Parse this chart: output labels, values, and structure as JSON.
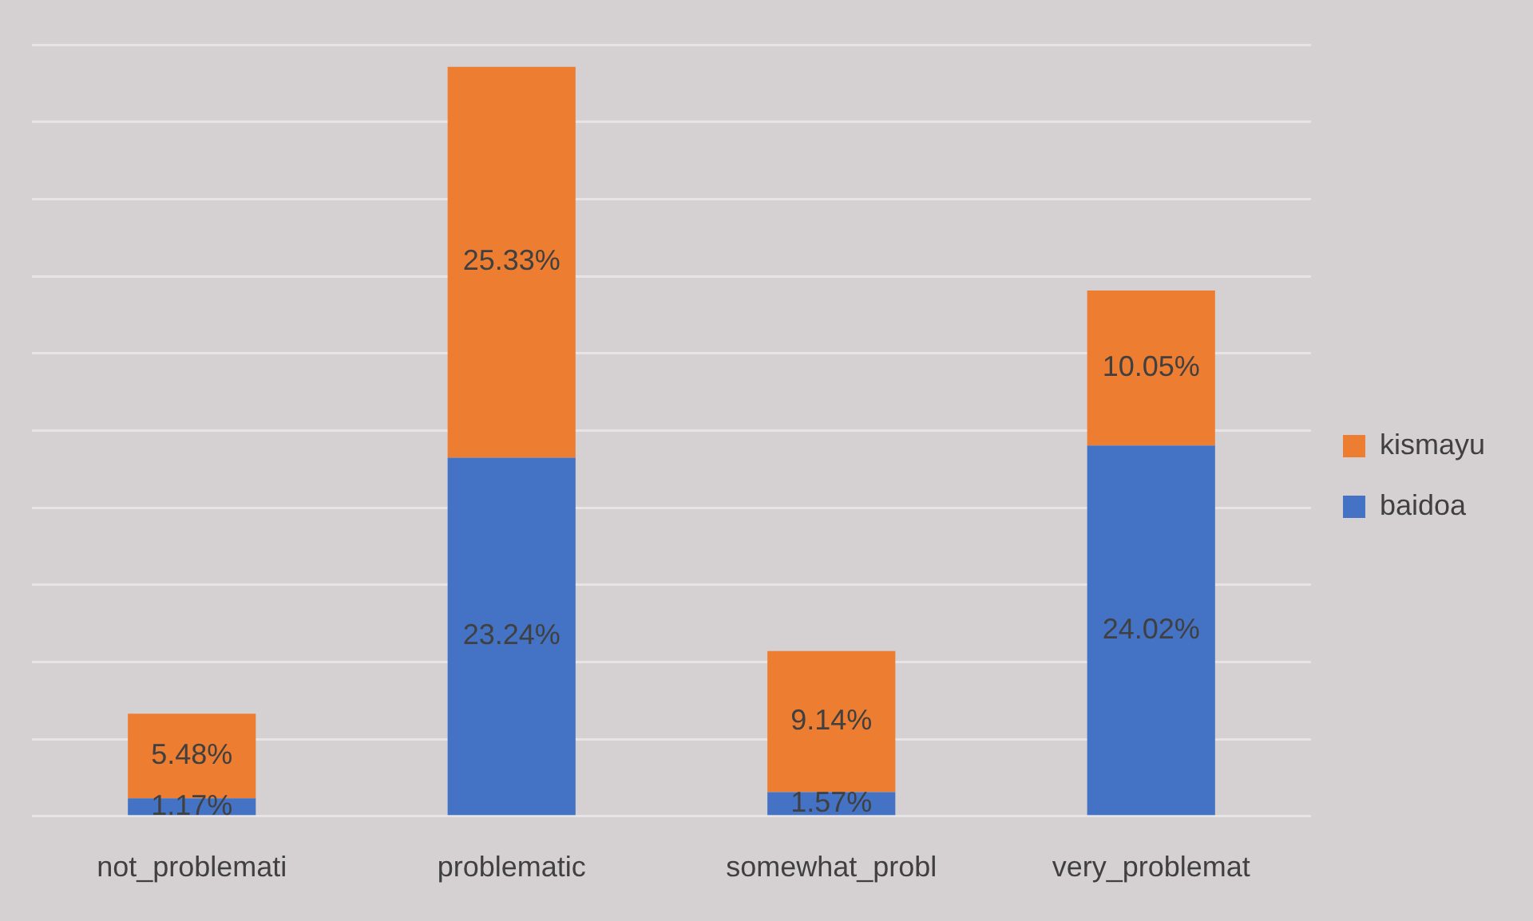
{
  "chart_data": {
    "type": "bar",
    "stacked": true,
    "categories": [
      "not_problemati",
      "problematic",
      "somewhat_probl",
      "very_problemat"
    ],
    "series": [
      {
        "name": "baidoa",
        "color": "#4472c4",
        "values": [
          1.17,
          23.24,
          1.57,
          24.02
        ],
        "value_labels": [
          "1.17%",
          "23.24%",
          "1.57%",
          "24.02%"
        ]
      },
      {
        "name": "kismayu",
        "color": "#ed7d31",
        "values": [
          5.48,
          25.33,
          9.14,
          10.05
        ],
        "value_labels": [
          "5.48%",
          "25.33%",
          "9.14%",
          "10.05%"
        ]
      }
    ],
    "grid": "y",
    "legend": "right",
    "tick_labels": "x"
  }
}
